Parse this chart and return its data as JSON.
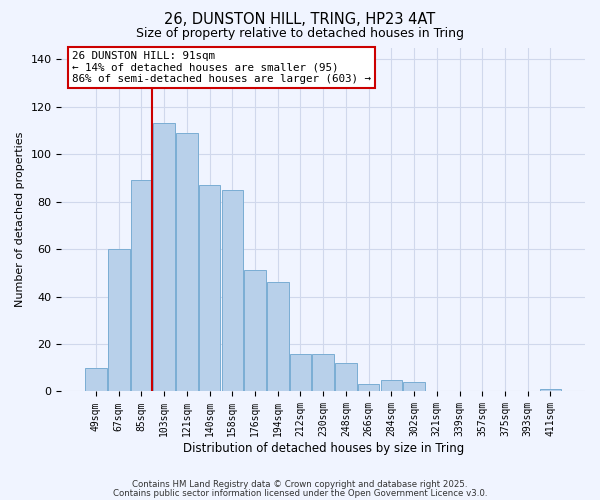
{
  "title_line1": "26, DUNSTON HILL, TRING, HP23 4AT",
  "title_line2": "Size of property relative to detached houses in Tring",
  "xlabel": "Distribution of detached houses by size in Tring",
  "ylabel": "Number of detached properties",
  "bar_labels": [
    "49sqm",
    "67sqm",
    "85sqm",
    "103sqm",
    "121sqm",
    "140sqm",
    "158sqm",
    "176sqm",
    "194sqm",
    "212sqm",
    "230sqm",
    "248sqm",
    "266sqm",
    "284sqm",
    "302sqm",
    "321sqm",
    "339sqm",
    "357sqm",
    "375sqm",
    "393sqm",
    "411sqm"
  ],
  "bar_heights": [
    10,
    60,
    89,
    113,
    109,
    87,
    85,
    51,
    46,
    16,
    16,
    12,
    3,
    5,
    4,
    0,
    0,
    0,
    0,
    0,
    1
  ],
  "bar_color": "#b8d0ea",
  "bar_edge_color": "#7aadd4",
  "vline_color": "#cc0000",
  "annotation_text": "26 DUNSTON HILL: 91sqm\n← 14% of detached houses are smaller (95)\n86% of semi-detached houses are larger (603) →",
  "ylim": [
    0,
    145
  ],
  "yticks": [
    0,
    20,
    40,
    60,
    80,
    100,
    120,
    140
  ],
  "footer_line1": "Contains HM Land Registry data © Crown copyright and database right 2025.",
  "footer_line2": "Contains public sector information licensed under the Open Government Licence v3.0.",
  "bg_color": "#f0f4ff",
  "grid_color": "#d0d8ec"
}
